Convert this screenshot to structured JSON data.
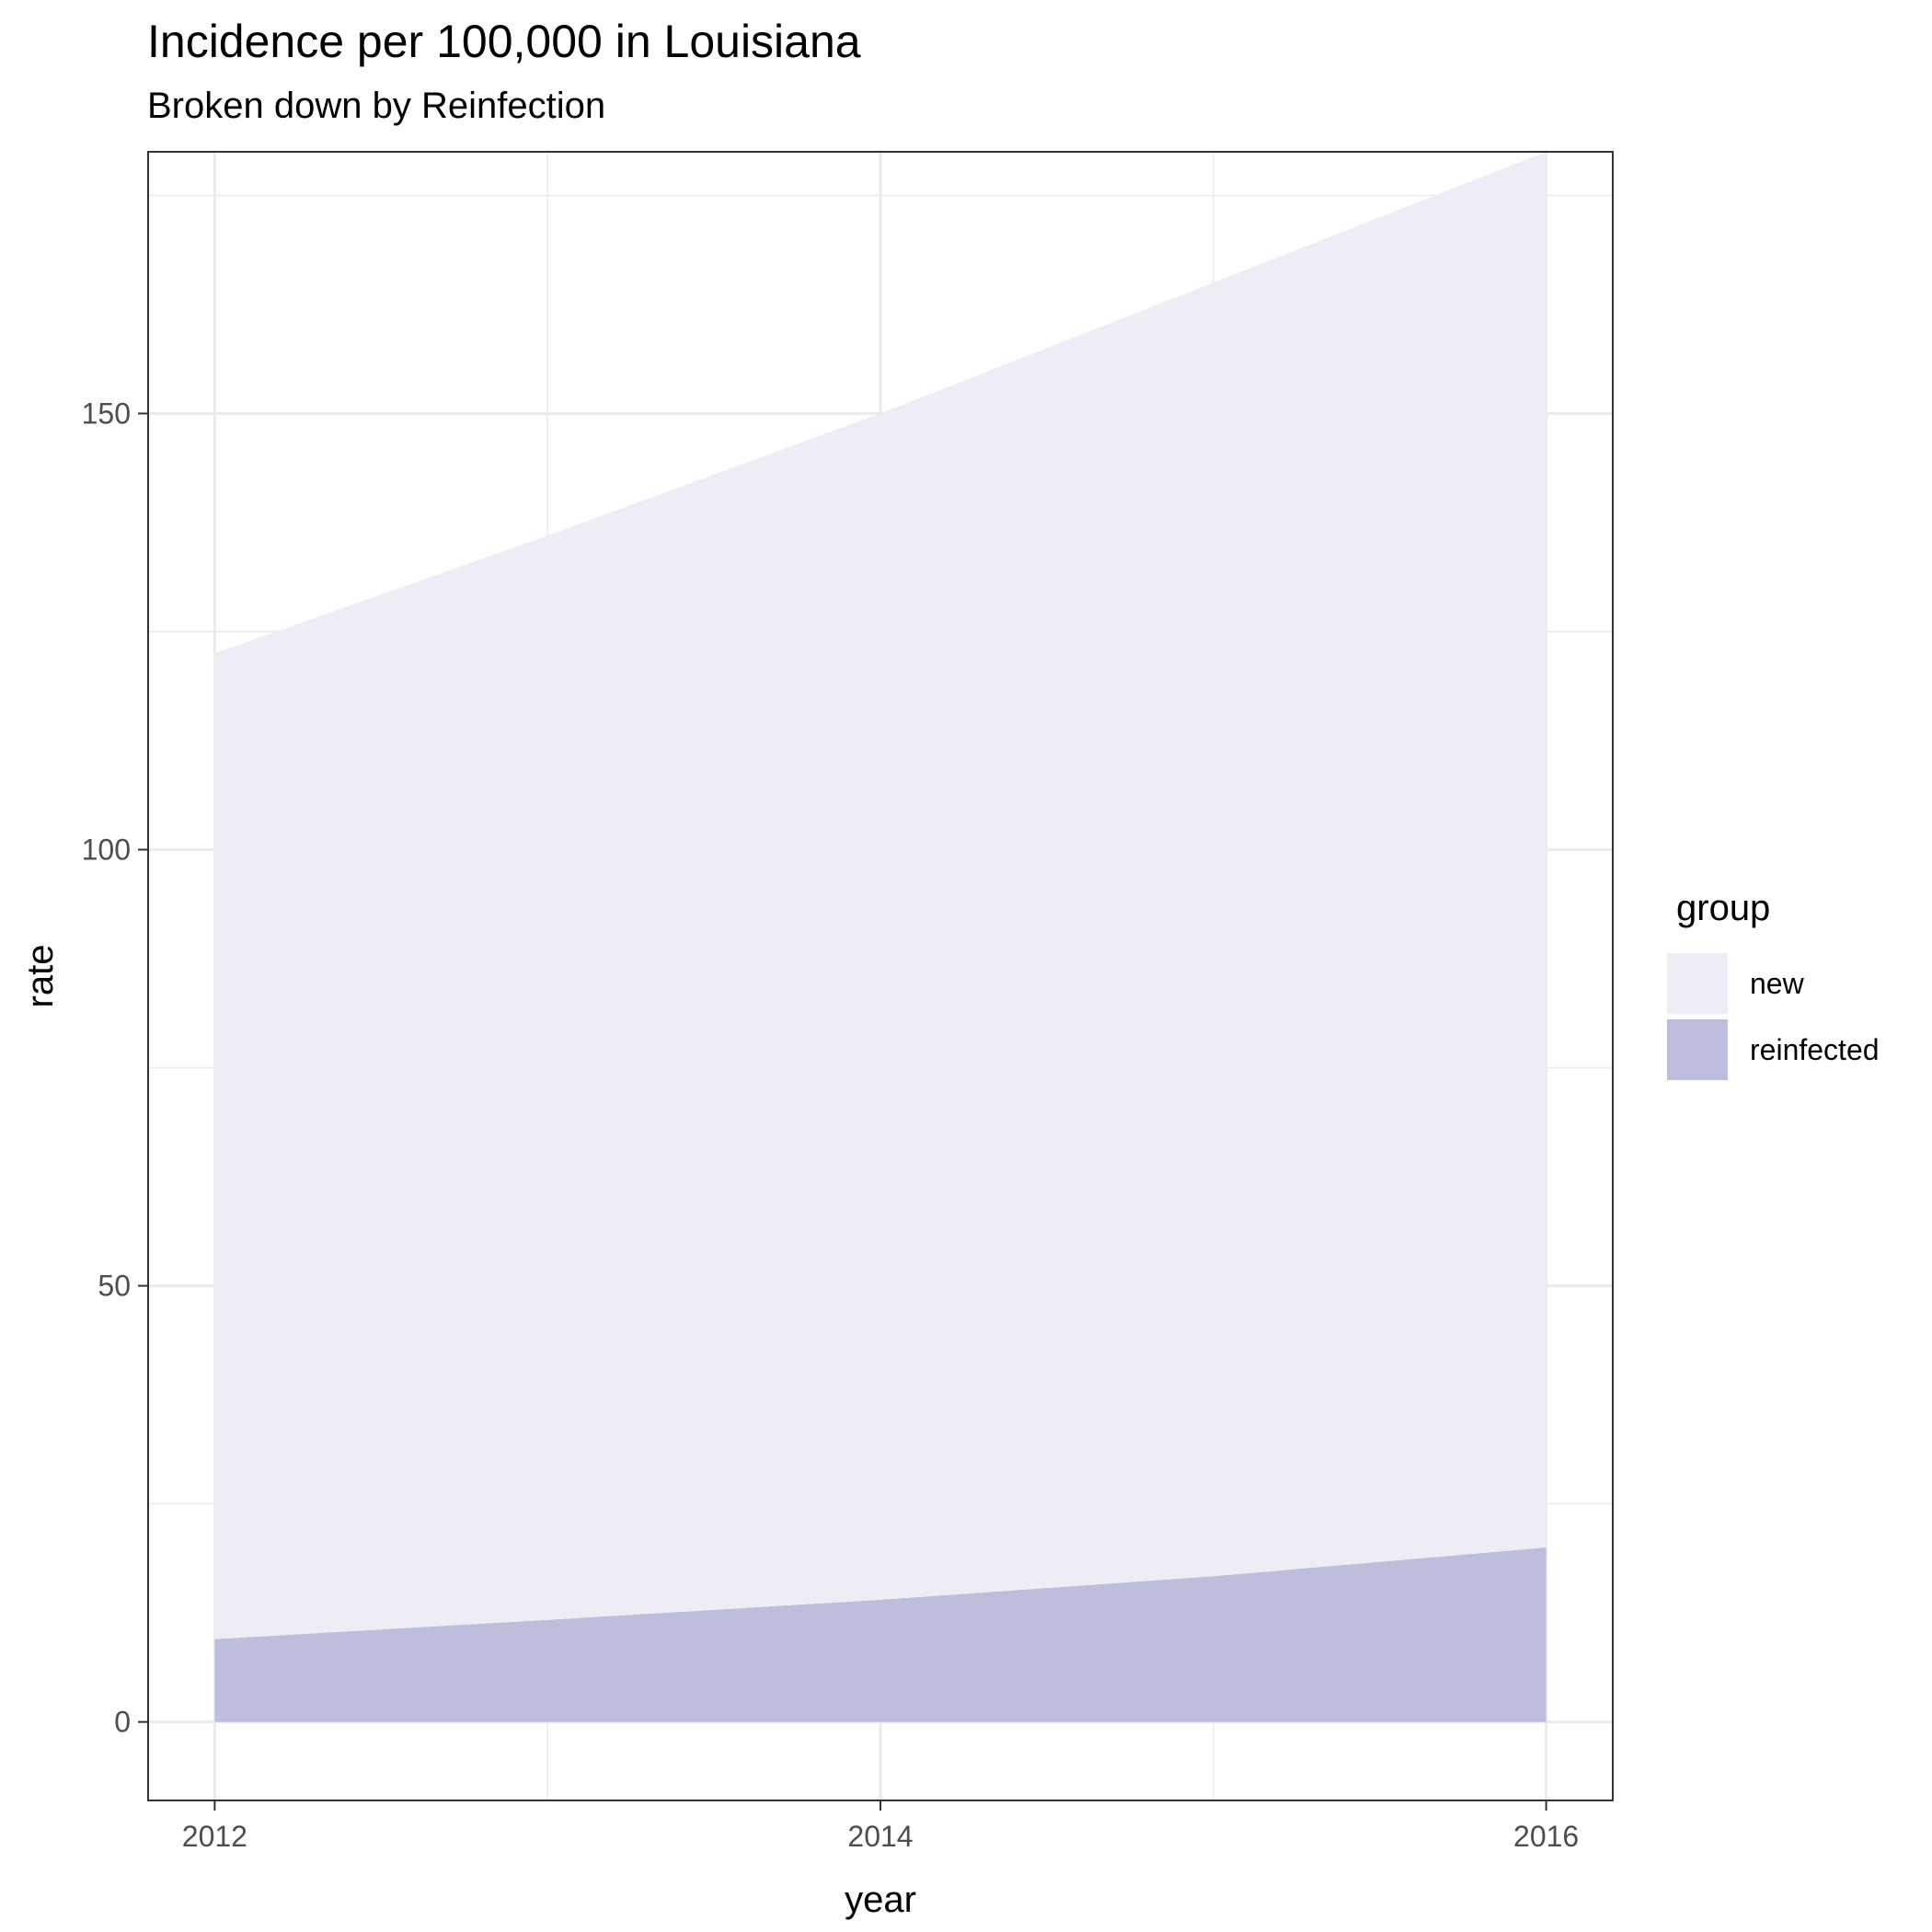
{
  "chart_data": {
    "type": "area",
    "stacked": true,
    "title": "Incidence per 100,000 in Louisiana",
    "subtitle": "Broken down by Reinfection",
    "xlabel": "year",
    "ylabel": "rate",
    "x": [
      2012,
      2013,
      2014,
      2015,
      2016
    ],
    "x_ticks": [
      "2012",
      "2014",
      "2016"
    ],
    "y_ticks": [
      "0",
      "50",
      "100",
      "150"
    ],
    "xlim": [
      2011.8,
      2016.2
    ],
    "ylim": [
      -9,
      180
    ],
    "grid": true,
    "legend": {
      "title": "group",
      "position": "right"
    },
    "series": [
      {
        "name": "reinfected",
        "color": "#bdbddc",
        "values": [
          9.5,
          11.7,
          14.0,
          16.7,
          20.0
        ]
      },
      {
        "name": "new",
        "color": "#eeedf6",
        "values": [
          113.0,
          124.3,
          136.0,
          148.3,
          160.0
        ]
      }
    ],
    "stack_totals": [
      122.5,
      136.0,
      150.0,
      165.0,
      180.0
    ]
  }
}
